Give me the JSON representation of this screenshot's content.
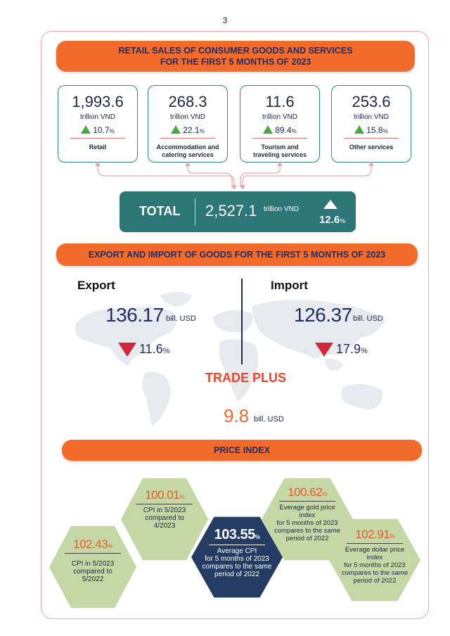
{
  "page_number": "3",
  "retail": {
    "title_line1": "RETAIL SALES OF CONSUMER GOODS AND SERVICES",
    "title_line2": "FOR THE FIRST 5 MONTHS OF 2023",
    "cards": [
      {
        "value": "1,993.6",
        "unit": "trillion VND",
        "change": "10.7",
        "pct": "%",
        "label1": "Retail",
        "label2": ""
      },
      {
        "value": "268.3",
        "unit": "trillion VND",
        "change": "22.1",
        "pct": "%",
        "label1": "Accommodation and",
        "label2": "catering services"
      },
      {
        "value": "11.6",
        "unit": "trillion VND",
        "change": "89.4",
        "pct": "%",
        "label1": "Tourism and",
        "label2": "traveling services"
      },
      {
        "value": "253.6",
        "unit": "trillion VND",
        "change": "15.8",
        "pct": "%",
        "label1": "Other services",
        "label2": ""
      }
    ],
    "total": {
      "label": "TOTAL",
      "value": "2,527.1",
      "unit": "trillion VND",
      "change": "12.6",
      "pct": "%"
    }
  },
  "trade": {
    "title": "EXPORT AND IMPORT OF GOODS FOR THE FIRST 5 MONTHS OF 2023",
    "export": {
      "label": "Export",
      "value": "136.17",
      "unit": "bill. USD",
      "change": "11.6",
      "pct": "%"
    },
    "import": {
      "label": "Import",
      "value": "126.37",
      "unit": "bill. USD",
      "change": "17.9",
      "pct": "%"
    },
    "plus": {
      "label": "TRADE PLUS",
      "value": "9.8",
      "unit": "bill. USD"
    }
  },
  "price": {
    "title": "PRICE INDEX",
    "items": [
      {
        "value": "100.01",
        "pct": "%",
        "desc": [
          "CPI in 5/2023",
          "compared to",
          "4/2023"
        ]
      },
      {
        "value": "102.43",
        "pct": "%",
        "desc": [
          "CPI in 5/2023",
          "compared to",
          "5/2022"
        ]
      },
      {
        "value": "103.55",
        "pct": "%",
        "desc": [
          "Average CPI",
          "for 5 months of 2023",
          "compares to the same",
          "period of 2022"
        ]
      },
      {
        "value": "100.62",
        "pct": "%",
        "desc": [
          "Everage gold price index",
          "for 5 months of 2023",
          "compares to the same",
          "period of 2022"
        ]
      },
      {
        "value": "102.91",
        "pct": "%",
        "desc": [
          "Everage dollar price index",
          "for 5 months of 2023",
          "compares to the same",
          "period of 2022"
        ]
      }
    ]
  },
  "colors": {
    "orange": "#f26b2a",
    "teal": "#2d7678",
    "navy": "#243b63",
    "green_hex": "#c3d8a5",
    "up": "#49a83e",
    "down": "#d2273b"
  }
}
